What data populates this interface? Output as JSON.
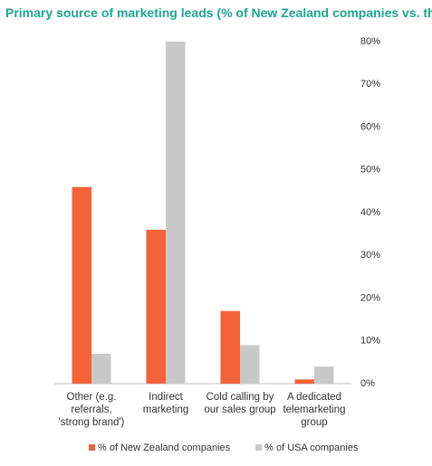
{
  "chart_data": {
    "type": "bar",
    "title": "Primary source of marketing leads (% of New Zealand companies vs. the US)",
    "categories": [
      "Other (e.g. referrals, 'strong brand')",
      "Indirect marketing",
      "Cold calling by our sales group",
      "A dedicated telemarketing group"
    ],
    "series": [
      {
        "name": "% of New Zealand companies",
        "color": "#f4623a",
        "values": [
          46,
          36,
          17,
          1
        ]
      },
      {
        "name": "% of USA companies",
        "color": "#c8c8c8",
        "values": [
          7,
          80,
          9,
          4
        ]
      }
    ],
    "ylim": [
      0,
      80
    ],
    "yticks": [
      {
        "value": 0,
        "label": "0%"
      },
      {
        "value": 10,
        "label": "10%"
      },
      {
        "value": 20,
        "label": "20%"
      },
      {
        "value": 30,
        "label": "30%"
      },
      {
        "value": 40,
        "label": "40%"
      },
      {
        "value": 50,
        "label": "50%"
      },
      {
        "value": 60,
        "label": "60%"
      },
      {
        "value": 70,
        "label": "70%"
      },
      {
        "value": 80,
        "label": "80%"
      }
    ],
    "grid": false
  }
}
